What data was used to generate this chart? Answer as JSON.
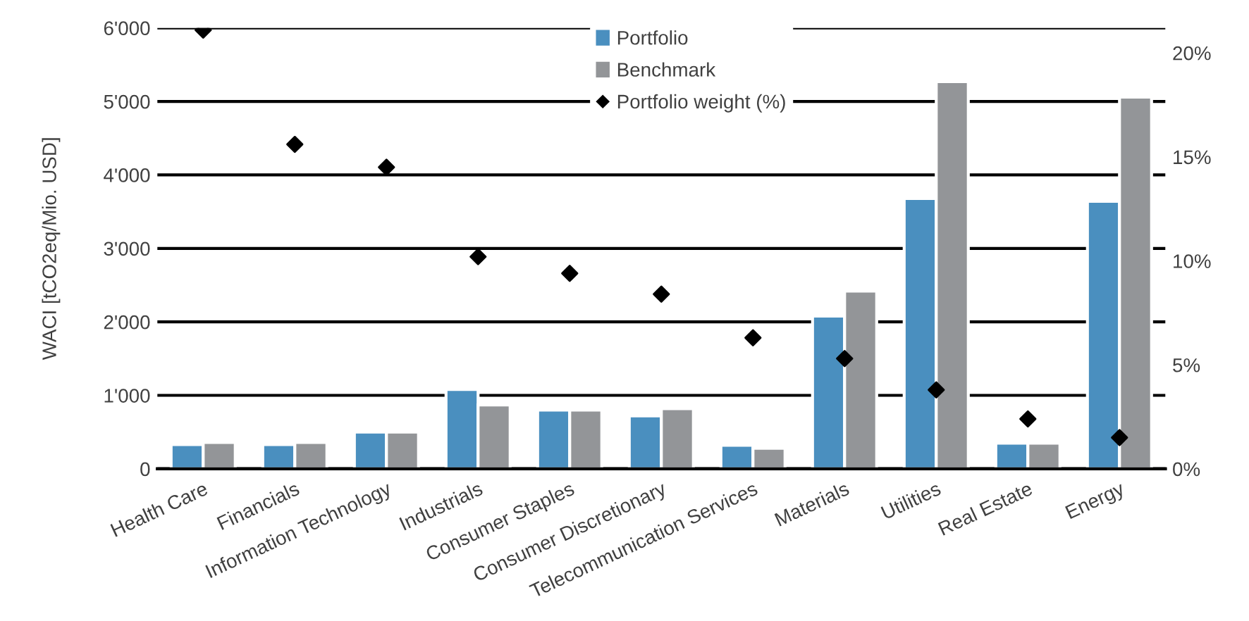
{
  "chart_data": {
    "type": "bar",
    "ylabel": "WACI [tCO2eq/Mio. USD]",
    "categories": [
      "Health Care",
      "Financials",
      "Information Technology",
      "Industrials",
      "Consumer Staples",
      "Consumer Discretionary",
      "Telecommunication Services",
      "Materials",
      "Utilities",
      "Real Estate",
      "Energy"
    ],
    "series": [
      {
        "name": "Portfolio",
        "color": "#4a8fbf",
        "values": [
          330,
          330,
          500,
          1080,
          800,
          720,
          320,
          2080,
          3680,
          350,
          3640
        ]
      },
      {
        "name": "Benchmark",
        "color": "#939598",
        "values": [
          360,
          360,
          500,
          870,
          800,
          820,
          280,
          2420,
          5270,
          350,
          5060
        ]
      },
      {
        "name": "Portfolio weight (%)",
        "type": "scatter",
        "axis": "y2",
        "color": "#000000",
        "values": [
          21.1,
          15.6,
          14.5,
          10.2,
          9.4,
          8.4,
          6.3,
          5.3,
          3.8,
          2.4,
          1.5
        ]
      }
    ],
    "ylim": [
      0,
      6000
    ],
    "yticks": [
      0,
      {
        "value": 1000,
        "label": "1'000"
      },
      {
        "value": 2000,
        "label": "2'000"
      },
      {
        "value": 3000,
        "label": "3'000"
      },
      {
        "value": 4000,
        "label": "4'000"
      },
      {
        "value": 5000,
        "label": "5'000"
      },
      {
        "value": 6000,
        "label": "6'000"
      }
    ],
    "y2lim": [
      0,
      21.2
    ],
    "y2ticks": [
      {
        "value": 0,
        "label": "0%"
      },
      {
        "value": 5,
        "label": "5%"
      },
      {
        "value": 10,
        "label": "10%"
      },
      {
        "value": 15,
        "label": "15%"
      },
      {
        "value": 20,
        "label": "20%"
      }
    ],
    "grid": "y",
    "legend": "top",
    "marker": "diamond"
  }
}
